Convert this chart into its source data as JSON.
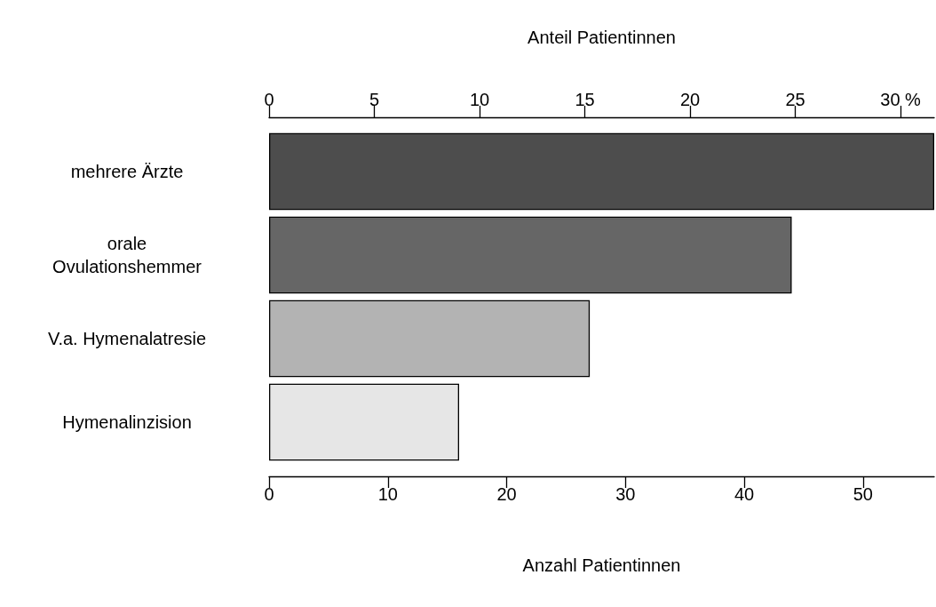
{
  "chart_data": {
    "type": "bar",
    "orientation": "horizontal",
    "categories": [
      "mehrere Ärzte",
      "orale\nOvulationshemmer",
      "V.a. Hymenalatresie",
      "Hymenalinzision"
    ],
    "values": [
      56,
      44,
      27,
      16
    ],
    "colors": [
      "#4d4d4d",
      "#666666",
      "#b3b3b3",
      "#e6e6e6"
    ],
    "xlabel": "Anzahl Patientinnen",
    "xlim": [
      0,
      56
    ],
    "xticks": [
      0,
      10,
      20,
      30,
      40,
      50
    ],
    "x2label": "Anteil Patientinnen",
    "x2lim": [
      0,
      31.6
    ],
    "x2ticks": [
      0,
      5,
      10,
      15,
      20,
      25,
      {
        "value": 30,
        "label": "30 %"
      }
    ],
    "grid": false
  }
}
